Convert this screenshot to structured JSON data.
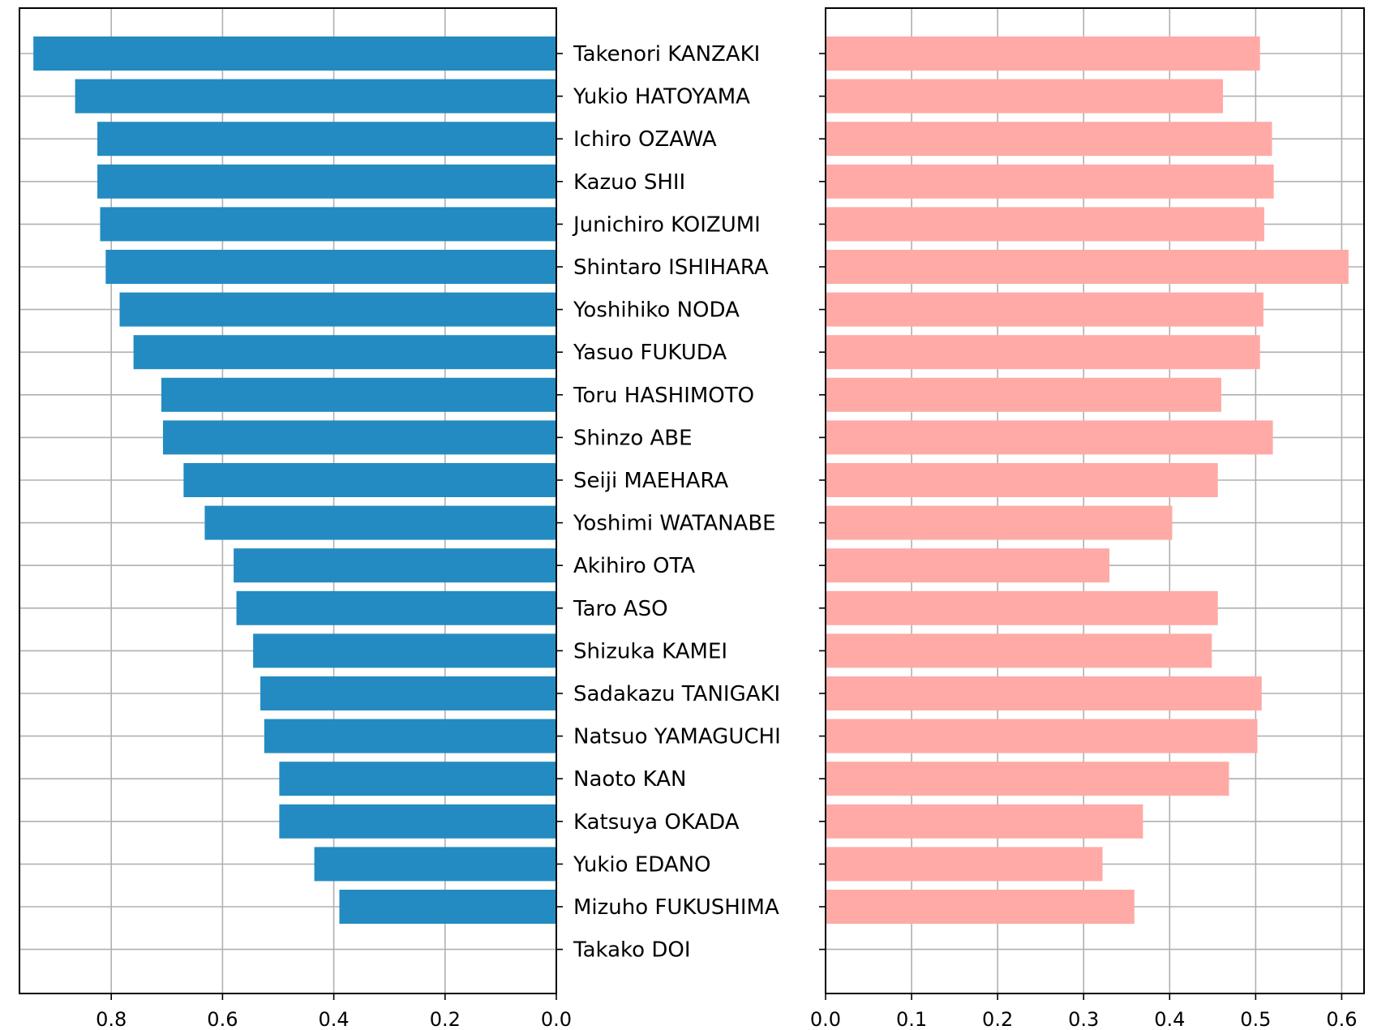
{
  "chart_data": {
    "type": "bar",
    "orientation": "horizontal",
    "categories": [
      "Takenori KANZAKI",
      "Yukio HATOYAMA",
      "Ichiro OZAWA",
      "Kazuo SHII",
      "Junichiro KOIZUMI",
      "Shintaro ISHIHARA",
      "Yoshihiko NODA",
      "Yasuo FUKUDA",
      "Toru HASHIMOTO",
      "Shinzo ABE",
      "Seiji MAEHARA",
      "Yoshimi WATANABE",
      "Akihiro OTA",
      "Taro ASO",
      "Shizuka KAMEI",
      "Sadakazu TANIGAKI",
      "Natsuo YAMAGUCHI",
      "Naoto KAN",
      "Katsuya OKADA",
      "Yukio EDANO",
      "Mizuho FUKUSHIMA",
      "Takako DOI"
    ],
    "panels": [
      {
        "side": "left",
        "direction": "reversed",
        "color": "#238bc1",
        "xlim": [
          0.0,
          0.965
        ],
        "ticks": [
          0.8,
          0.6,
          0.4,
          0.2,
          0.0
        ],
        "tick_labels": [
          "0.8",
          "0.6",
          "0.4",
          "0.2",
          "0.0"
        ],
        "values": [
          0.94,
          0.865,
          0.825,
          0.825,
          0.82,
          0.81,
          0.785,
          0.76,
          0.71,
          0.707,
          0.67,
          0.632,
          0.58,
          0.575,
          0.545,
          0.532,
          0.525,
          0.498,
          0.498,
          0.435,
          0.39,
          0.0
        ]
      },
      {
        "side": "right",
        "direction": "normal",
        "color": "#ffaaa6",
        "xlim": [
          0.0,
          0.626
        ],
        "ticks": [
          0.0,
          0.1,
          0.2,
          0.3,
          0.4,
          0.5,
          0.6
        ],
        "tick_labels": [
          "0.0",
          "0.1",
          "0.2",
          "0.3",
          "0.4",
          "0.5",
          "0.6"
        ],
        "values": [
          0.505,
          0.462,
          0.519,
          0.521,
          0.51,
          0.608,
          0.509,
          0.505,
          0.46,
          0.52,
          0.456,
          0.403,
          0.33,
          0.456,
          0.449,
          0.507,
          0.502,
          0.469,
          0.369,
          0.322,
          0.359,
          0.0
        ]
      }
    ],
    "grid": true,
    "legend": "none"
  }
}
